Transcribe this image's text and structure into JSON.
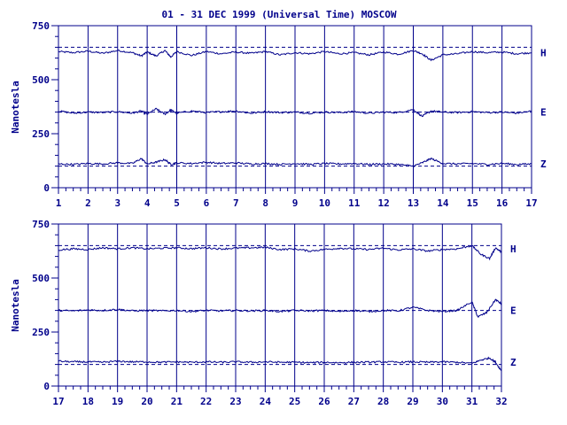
{
  "title": "01 - 31 DEC 1999 (Universal Time) MOSCOW",
  "colors": {
    "ink": "#00008b",
    "background": "#ffffff"
  },
  "chart_data": [
    {
      "type": "line",
      "ylabel": "Nanotesla",
      "ylim": [
        0,
        750
      ],
      "y_ticks": [
        0,
        250,
        500,
        750
      ],
      "x_ticks": [
        "1",
        "2",
        "3",
        "4",
        "5",
        "6",
        "7",
        "8",
        "9",
        "10",
        "11",
        "12",
        "13",
        "14",
        "15",
        "16",
        "17"
      ],
      "xlim": [
        1,
        17
      ],
      "reference_lines": [
        650,
        350,
        100
      ],
      "grid": "vertical lines at each day",
      "series": [
        {
          "name": "H",
          "baseline": 625,
          "points": [
            [
              1,
              630
            ],
            [
              1.5,
              625
            ],
            [
              2,
              632
            ],
            [
              2.5,
              622
            ],
            [
              3,
              635
            ],
            [
              3.5,
              625
            ],
            [
              3.8,
              610
            ],
            [
              4,
              628
            ],
            [
              4.3,
              610
            ],
            [
              4.6,
              635
            ],
            [
              4.8,
              605
            ],
            [
              5,
              630
            ],
            [
              5.5,
              612
            ],
            [
              6,
              630
            ],
            [
              6.5,
              620
            ],
            [
              7,
              628
            ],
            [
              7.5,
              622
            ],
            [
              8,
              630
            ],
            [
              8.5,
              615
            ],
            [
              9,
              625
            ],
            [
              9.5,
              620
            ],
            [
              10,
              630
            ],
            [
              10.5,
              620
            ],
            [
              11,
              625
            ],
            [
              11.5,
              615
            ],
            [
              12,
              628
            ],
            [
              12.5,
              618
            ],
            [
              13,
              635
            ],
            [
              13.3,
              620
            ],
            [
              13.6,
              590
            ],
            [
              14,
              615
            ],
            [
              14.5,
              620
            ],
            [
              15,
              630
            ],
            [
              15.5,
              625
            ],
            [
              16,
              628
            ],
            [
              16.5,
              620
            ],
            [
              17,
              625
            ]
          ]
        },
        {
          "name": "E",
          "baseline": 350,
          "points": [
            [
              1,
              355
            ],
            [
              1.5,
              345
            ],
            [
              2,
              350
            ],
            [
              2.5,
              348
            ],
            [
              3,
              352
            ],
            [
              3.5,
              345
            ],
            [
              3.8,
              355
            ],
            [
              4,
              340
            ],
            [
              4.3,
              365
            ],
            [
              4.6,
              340
            ],
            [
              4.8,
              360
            ],
            [
              5,
              345
            ],
            [
              5.5,
              355
            ],
            [
              6,
              348
            ],
            [
              6.5,
              352
            ],
            [
              7,
              355
            ],
            [
              7.5,
              345
            ],
            [
              8,
              352
            ],
            [
              8.5,
              348
            ],
            [
              9,
              350
            ],
            [
              9.5,
              345
            ],
            [
              10,
              350
            ],
            [
              10.5,
              348
            ],
            [
              11,
              352
            ],
            [
              11.5,
              345
            ],
            [
              12,
              350
            ],
            [
              12.5,
              348
            ],
            [
              13,
              362
            ],
            [
              13.3,
              330
            ],
            [
              13.6,
              355
            ],
            [
              14,
              350
            ],
            [
              14.5,
              348
            ],
            [
              15,
              352
            ],
            [
              15.5,
              348
            ],
            [
              16,
              350
            ],
            [
              16.5,
              345
            ],
            [
              17,
              355
            ]
          ]
        },
        {
          "name": "Z",
          "baseline": 110,
          "points": [
            [
              1,
              110
            ],
            [
              1.5,
              108
            ],
            [
              2,
              112
            ],
            [
              2.5,
              110
            ],
            [
              3,
              115
            ],
            [
              3.5,
              112
            ],
            [
              3.8,
              135
            ],
            [
              4,
              110
            ],
            [
              4.3,
              118
            ],
            [
              4.6,
              130
            ],
            [
              4.8,
              108
            ],
            [
              5,
              115
            ],
            [
              5.5,
              112
            ],
            [
              6,
              118
            ],
            [
              6.5,
              112
            ],
            [
              7,
              115
            ],
            [
              7.5,
              110
            ],
            [
              8,
              112
            ],
            [
              8.5,
              108
            ],
            [
              9,
              112
            ],
            [
              9.5,
              108
            ],
            [
              10,
              112
            ],
            [
              10.5,
              110
            ],
            [
              11,
              112
            ],
            [
              11.5,
              108
            ],
            [
              12,
              110
            ],
            [
              12.5,
              108
            ],
            [
              13,
              100
            ],
            [
              13.3,
              115
            ],
            [
              13.6,
              135
            ],
            [
              14,
              112
            ],
            [
              14.5,
              110
            ],
            [
              15,
              112
            ],
            [
              15.5,
              108
            ],
            [
              16,
              112
            ],
            [
              16.5,
              108
            ],
            [
              17,
              110
            ]
          ]
        }
      ]
    },
    {
      "type": "line",
      "ylabel": "Nanotesla",
      "ylim": [
        0,
        750
      ],
      "y_ticks": [
        0,
        250,
        500,
        750
      ],
      "x_ticks": [
        "17",
        "18",
        "19",
        "20",
        "21",
        "22",
        "23",
        "24",
        "25",
        "26",
        "27",
        "28",
        "29",
        "30",
        "31",
        "32"
      ],
      "xlim": [
        17,
        32
      ],
      "reference_lines": [
        650,
        350,
        100
      ],
      "grid": "vertical lines at each day",
      "series": [
        {
          "name": "H",
          "baseline": 635,
          "points": [
            [
              17,
              630
            ],
            [
              17.5,
              635
            ],
            [
              18,
              632
            ],
            [
              18.5,
              640
            ],
            [
              19,
              635
            ],
            [
              19.5,
              640
            ],
            [
              20,
              635
            ],
            [
              20.5,
              638
            ],
            [
              21,
              640
            ],
            [
              21.5,
              636
            ],
            [
              22,
              640
            ],
            [
              22.5,
              635
            ],
            [
              23,
              638
            ],
            [
              23.5,
              640
            ],
            [
              24,
              642
            ],
            [
              24.5,
              632
            ],
            [
              25,
              635
            ],
            [
              25.5,
              625
            ],
            [
              26,
              632
            ],
            [
              26.5,
              638
            ],
            [
              27,
              635
            ],
            [
              27.5,
              632
            ],
            [
              28,
              638
            ],
            [
              28.5,
              630
            ],
            [
              29,
              635
            ],
            [
              29.5,
              625
            ],
            [
              30,
              632
            ],
            [
              30.5,
              635
            ],
            [
              31,
              650
            ],
            [
              31.3,
              610
            ],
            [
              31.6,
              590
            ],
            [
              31.8,
              640
            ],
            [
              32,
              620
            ]
          ]
        },
        {
          "name": "E",
          "baseline": 350,
          "points": [
            [
              17,
              350
            ],
            [
              17.5,
              348
            ],
            [
              18,
              352
            ],
            [
              18.5,
              350
            ],
            [
              19,
              355
            ],
            [
              19.5,
              348
            ],
            [
              20,
              350
            ],
            [
              20.5,
              348
            ],
            [
              21,
              350
            ],
            [
              21.5,
              345
            ],
            [
              22,
              350
            ],
            [
              22.5,
              348
            ],
            [
              23,
              350
            ],
            [
              23.5,
              348
            ],
            [
              24,
              350
            ],
            [
              24.5,
              345
            ],
            [
              25,
              350
            ],
            [
              25.5,
              348
            ],
            [
              26,
              350
            ],
            [
              26.5,
              345
            ],
            [
              27,
              350
            ],
            [
              27.5,
              345
            ],
            [
              28,
              350
            ],
            [
              28.5,
              348
            ],
            [
              29,
              365
            ],
            [
              29.5,
              350
            ],
            [
              30,
              345
            ],
            [
              30.5,
              350
            ],
            [
              31,
              390
            ],
            [
              31.2,
              320
            ],
            [
              31.5,
              340
            ],
            [
              31.8,
              400
            ],
            [
              32,
              380
            ]
          ]
        },
        {
          "name": "Z",
          "baseline": 110,
          "points": [
            [
              17,
              115
            ],
            [
              17.5,
              112
            ],
            [
              18,
              112
            ],
            [
              18.5,
              110
            ],
            [
              19,
              115
            ],
            [
              19.5,
              112
            ],
            [
              20,
              112
            ],
            [
              20.5,
              110
            ],
            [
              21,
              112
            ],
            [
              21.5,
              110
            ],
            [
              22,
              112
            ],
            [
              22.5,
              110
            ],
            [
              23,
              112
            ],
            [
              23.5,
              110
            ],
            [
              24,
              112
            ],
            [
              24.5,
              110
            ],
            [
              25,
              110
            ],
            [
              25.5,
              108
            ],
            [
              26,
              110
            ],
            [
              26.5,
              108
            ],
            [
              27,
              110
            ],
            [
              27.5,
              110
            ],
            [
              28,
              112
            ],
            [
              28.5,
              110
            ],
            [
              29,
              112
            ],
            [
              29.5,
              110
            ],
            [
              30,
              112
            ],
            [
              30.5,
              110
            ],
            [
              31,
              105
            ],
            [
              31.3,
              120
            ],
            [
              31.6,
              130
            ],
            [
              31.8,
              110
            ],
            [
              32,
              70
            ]
          ]
        }
      ]
    }
  ]
}
